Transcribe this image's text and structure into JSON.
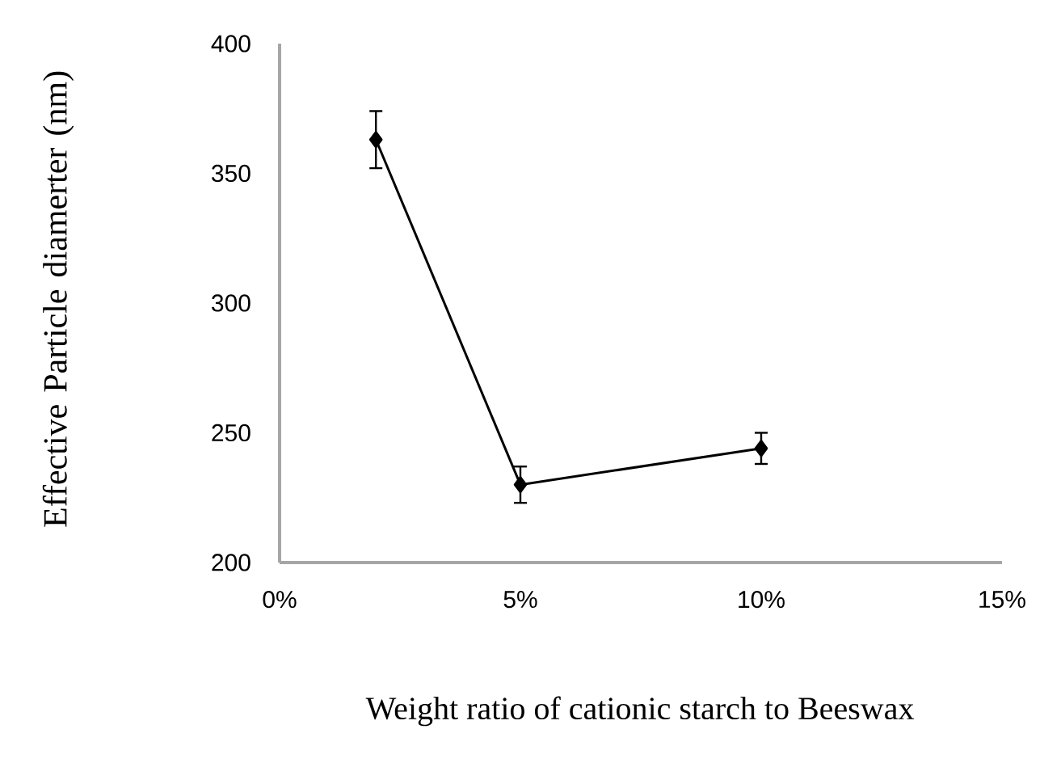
{
  "chart_data": {
    "type": "line",
    "xlabel": "Weight ratio of cationic starch to Beeswax",
    "ylabel": "Effective Particle diamerter (nm)",
    "x": [
      2,
      5,
      10
    ],
    "series": [
      {
        "color": "#000000",
        "values": [
          363,
          230,
          244
        ],
        "errors": [
          11,
          7,
          6
        ]
      }
    ],
    "xlim": [
      0,
      15
    ],
    "xticks": [
      {
        "value": 0,
        "label": "0%"
      },
      {
        "value": 5,
        "label": "5%"
      },
      {
        "value": 10,
        "label": "10%"
      },
      {
        "value": 15,
        "label": "15%"
      }
    ],
    "ylim": [
      200,
      400
    ],
    "yticks": [
      200,
      250,
      300,
      350,
      400
    ],
    "grid": false,
    "legend": false,
    "marker": "diamond",
    "line_style": "solid"
  }
}
